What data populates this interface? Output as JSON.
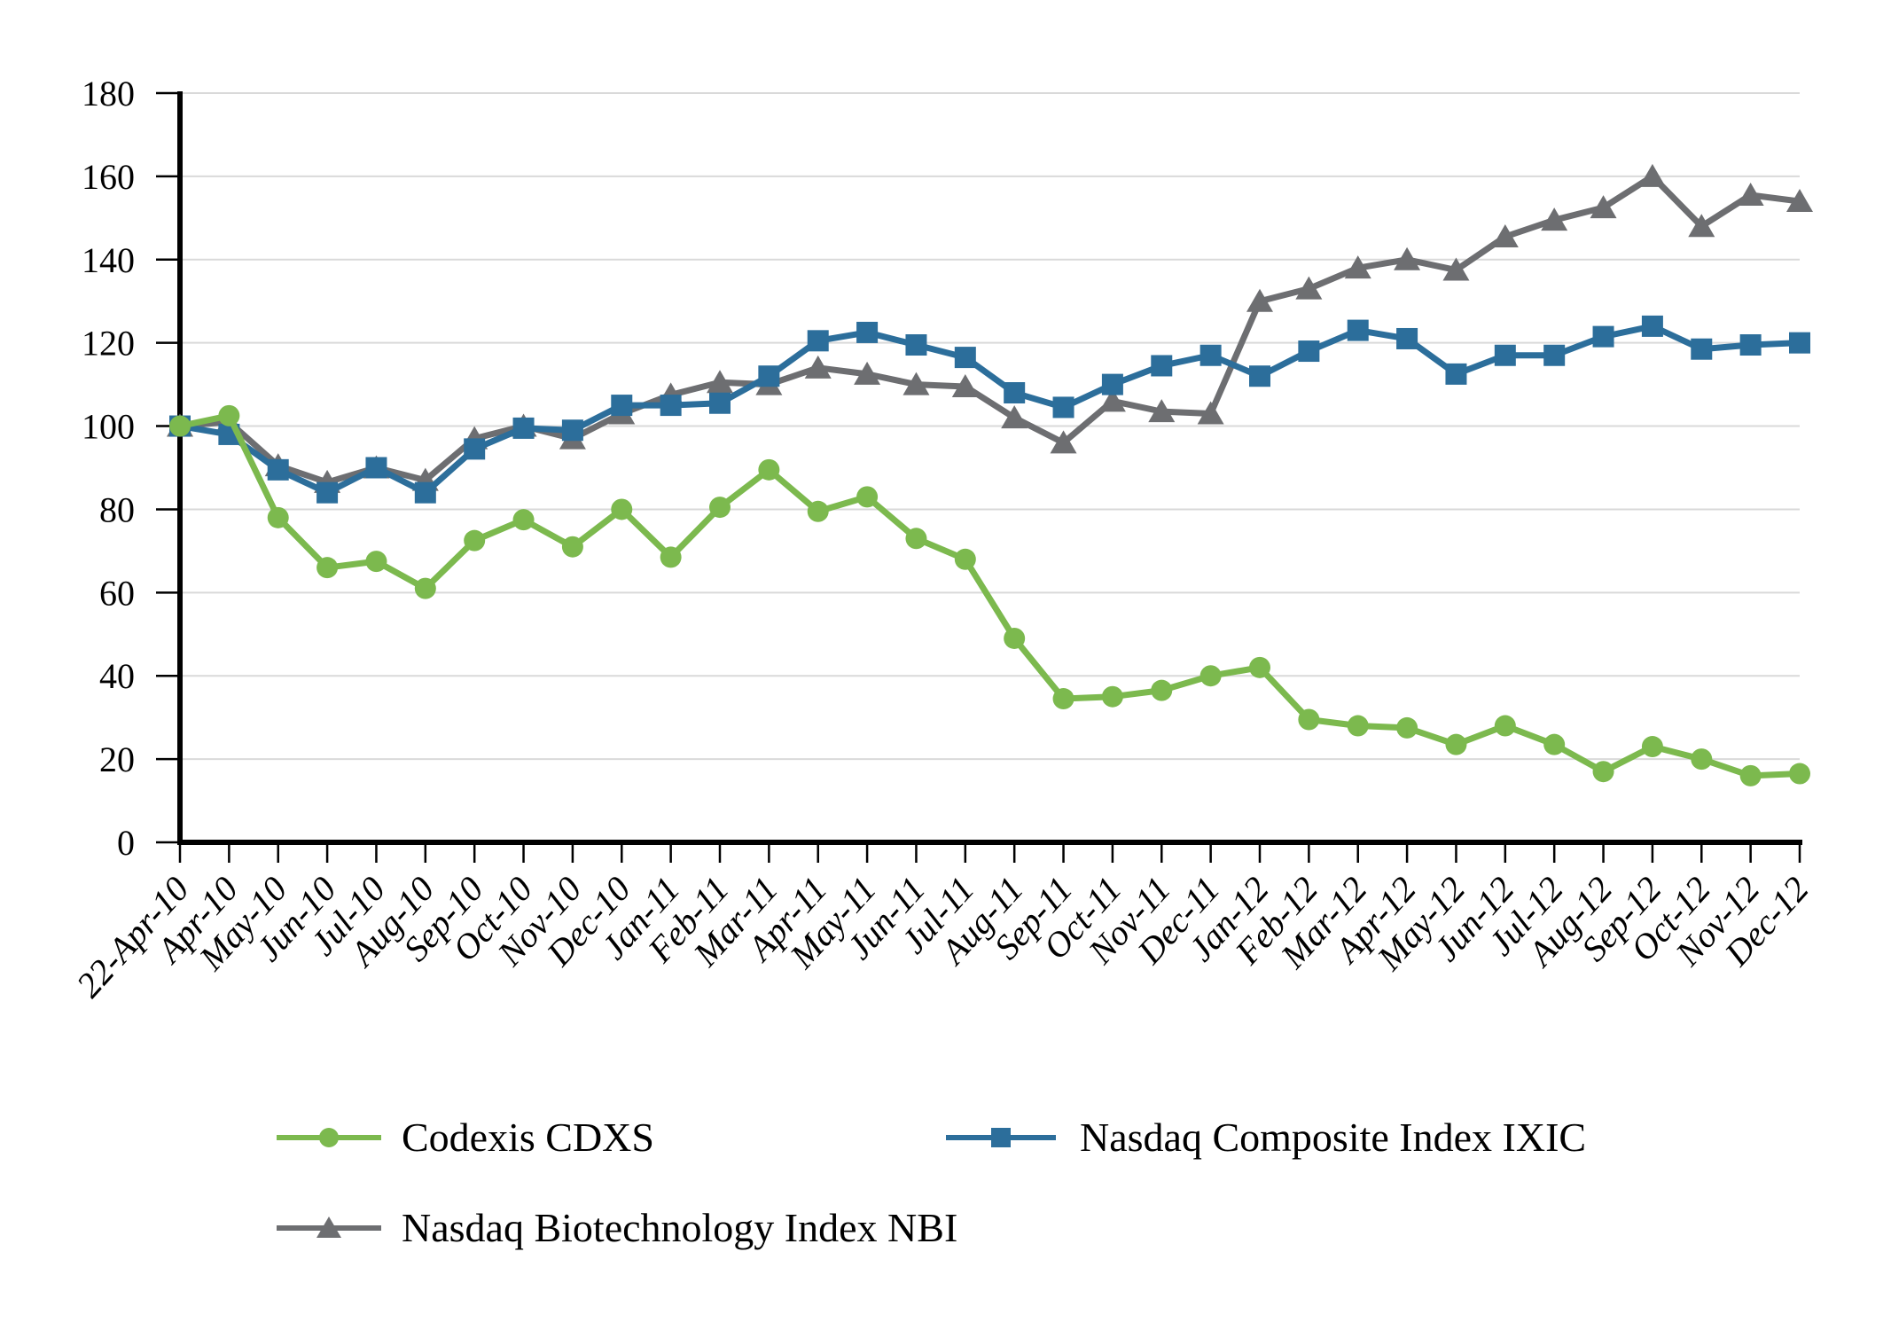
{
  "chart_data": {
    "type": "line",
    "title": "",
    "categories": [
      "22-Apr-10",
      "Apr-10",
      "May-10",
      "Jun-10",
      "Jul-10",
      "Aug-10",
      "Sep-10",
      "Oct-10",
      "Nov-10",
      "Dec-10",
      "Jan-11",
      "Feb-11",
      "Mar-11",
      "Apr-11",
      "May-11",
      "Jun-11",
      "Jul-11",
      "Aug-11",
      "Sep-11",
      "Oct-11",
      "Nov-11",
      "Dec-11",
      "Jan-12",
      "Feb-12",
      "Mar-12",
      "Apr-12",
      "May-12",
      "Jun-12",
      "Jul-12",
      "Aug-12",
      "Sep-12",
      "Oct-12",
      "Nov-12",
      "Dec-12"
    ],
    "series": [
      {
        "name": "Codexis CDXS",
        "marker": "circle",
        "color": "#7CB94E",
        "values": [
          100,
          102.5,
          78,
          66,
          67.5,
          61,
          72.5,
          77.5,
          71,
          80,
          68.5,
          80.5,
          89.5,
          79.5,
          83,
          73,
          68,
          49,
          34.5,
          35,
          36.5,
          40,
          42,
          29.5,
          28,
          27.5,
          23.5,
          28,
          23.5,
          17,
          23,
          20,
          16,
          16.5
        ]
      },
      {
        "name": "Nasdaq Composite Index IXIC",
        "marker": "square",
        "color": "#2C6E9B",
        "values": [
          100,
          98,
          89.5,
          84,
          90,
          84,
          94.5,
          99.5,
          99,
          105,
          105,
          105.5,
          112,
          120.5,
          122.5,
          119.5,
          116.5,
          108,
          104.5,
          110,
          114.5,
          117,
          112,
          118,
          123,
          121,
          112.5,
          117,
          117,
          121.5,
          124,
          118.5,
          119.5,
          120
        ]
      },
      {
        "name": "Nasdaq Biotechnology Index NBI",
        "marker": "triangle",
        "color": "#6D6E71",
        "values": [
          100,
          101,
          90.5,
          86.5,
          90,
          87,
          97,
          100,
          97,
          103,
          107.5,
          110.5,
          110,
          114,
          112.5,
          110,
          109.5,
          102,
          96,
          106,
          103.5,
          103,
          130,
          133,
          138,
          140,
          137.5,
          145.5,
          149.5,
          152.5,
          160,
          148,
          155.5,
          154
        ]
      }
    ],
    "y_axis": {
      "min": 0,
      "max": 180,
      "step": 20,
      "tick_labels": [
        "0",
        "20",
        "40",
        "60",
        "80",
        "100",
        "120",
        "140",
        "160",
        "180"
      ]
    },
    "x_axis": {
      "label_style": "italic",
      "label_rotation_deg": -48
    },
    "grid": true,
    "legend_position": "bottom",
    "colors": {
      "gridline": "#D9D9D9",
      "axis": "#000000",
      "text": "#000000",
      "background": "#FFFFFF"
    }
  },
  "legend": {
    "items": [
      {
        "label": "Codexis CDXS"
      },
      {
        "label": "Nasdaq Composite Index IXIC"
      },
      {
        "label": "Nasdaq Biotechnology Index NBI"
      }
    ]
  }
}
